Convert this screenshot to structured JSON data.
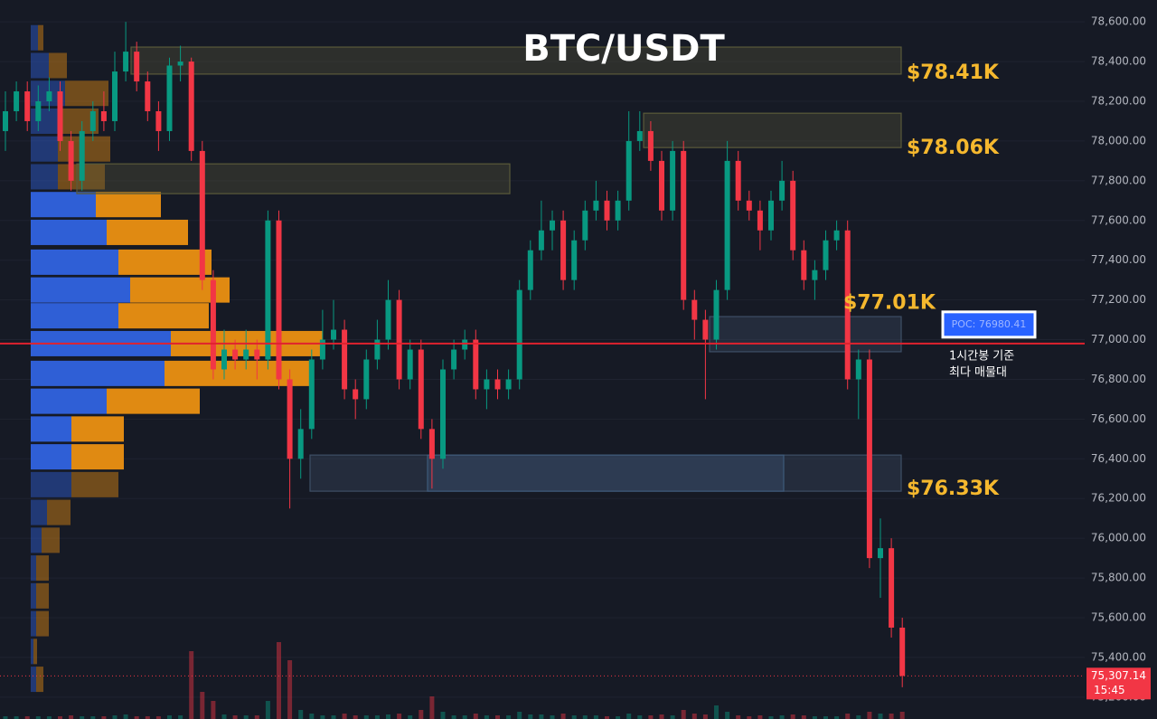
{
  "chart_data": {
    "type": "candlestick",
    "title": "BTC/USDT",
    "ylim": [
      75090,
      78710
    ],
    "yticks": [
      {
        "value": 78600,
        "label": "78,600.00"
      },
      {
        "value": 78400,
        "label": "78,400.00"
      },
      {
        "value": 78200,
        "label": "78,200.00"
      },
      {
        "value": 78000,
        "label": "78,000.00"
      },
      {
        "value": 77800,
        "label": "77,800.00"
      },
      {
        "value": 77600,
        "label": "77,600.00"
      },
      {
        "value": 77400,
        "label": "77,400.00"
      },
      {
        "value": 77200,
        "label": "77,200.00"
      },
      {
        "value": 77000,
        "label": "77,000.00"
      },
      {
        "value": 76800,
        "label": "76,800.00"
      },
      {
        "value": 76600,
        "label": "76,600.00"
      },
      {
        "value": 76400,
        "label": "76,400.00"
      },
      {
        "value": 76200,
        "label": "76,200.00"
      },
      {
        "value": 76000,
        "label": "76,000.00"
      },
      {
        "value": 75800,
        "label": "75,800.00"
      },
      {
        "value": 75600,
        "label": "75,600.00"
      },
      {
        "value": 75400,
        "label": "75,400.00"
      },
      {
        "value": 75200,
        "label": "75,200.00"
      }
    ],
    "grid": true,
    "up_color": "#089981",
    "down_color": "#f23645",
    "candles": [
      [
        78050,
        78250,
        77950,
        78150
      ],
      [
        78150,
        78300,
        78100,
        78250
      ],
      [
        78250,
        78300,
        78050,
        78100
      ],
      [
        78100,
        78280,
        78050,
        78200
      ],
      [
        78200,
        78320,
        78150,
        78250
      ],
      [
        78250,
        78300,
        77950,
        78000
      ],
      [
        78000,
        78050,
        77750,
        77800
      ],
      [
        77800,
        78100,
        77750,
        78050
      ],
      [
        78050,
        78200,
        78000,
        78150
      ],
      [
        78150,
        78250,
        78050,
        78100
      ],
      [
        78100,
        78450,
        78050,
        78350
      ],
      [
        78350,
        78600,
        78300,
        78450
      ],
      [
        78450,
        78500,
        78250,
        78300
      ],
      [
        78300,
        78350,
        78100,
        78150
      ],
      [
        78150,
        78200,
        77950,
        78050
      ],
      [
        78050,
        78420,
        78000,
        78380
      ],
      [
        78380,
        78480,
        78300,
        78400
      ],
      [
        78400,
        78420,
        77900,
        77950
      ],
      [
        77950,
        78000,
        77250,
        77300
      ],
      [
        77300,
        77350,
        76800,
        76850
      ],
      [
        76850,
        77050,
        76800,
        76950
      ],
      [
        76950,
        77000,
        76850,
        76900
      ],
      [
        76900,
        77050,
        76850,
        76950
      ],
      [
        76950,
        77000,
        76800,
        76900
      ],
      [
        76900,
        77650,
        76850,
        77600
      ],
      [
        77600,
        77650,
        76750,
        76800
      ],
      [
        76800,
        76850,
        76150,
        76400
      ],
      [
        76400,
        76650,
        76300,
        76550
      ],
      [
        76550,
        76950,
        76500,
        76900
      ],
      [
        76900,
        77150,
        76850,
        77000
      ],
      [
        77000,
        77200,
        76950,
        77050
      ],
      [
        77050,
        77100,
        76700,
        76750
      ],
      [
        76750,
        76800,
        76600,
        76700
      ],
      [
        76700,
        76950,
        76650,
        76900
      ],
      [
        76900,
        77100,
        76850,
        77000
      ],
      [
        77000,
        77300,
        76950,
        77200
      ],
      [
        77200,
        77250,
        76750,
        76800
      ],
      [
        76800,
        77000,
        76750,
        76950
      ],
      [
        76950,
        77000,
        76500,
        76550
      ],
      [
        76550,
        76600,
        76250,
        76400
      ],
      [
        76400,
        76900,
        76350,
        76850
      ],
      [
        76850,
        77000,
        76800,
        76950
      ],
      [
        76950,
        77050,
        76900,
        77000
      ],
      [
        77000,
        77050,
        76700,
        76750
      ],
      [
        76750,
        76850,
        76650,
        76800
      ],
      [
        76800,
        76850,
        76700,
        76750
      ],
      [
        76750,
        76850,
        76700,
        76800
      ],
      [
        76800,
        77300,
        76750,
        77250
      ],
      [
        77250,
        77500,
        77200,
        77450
      ],
      [
        77450,
        77700,
        77400,
        77550
      ],
      [
        77550,
        77650,
        77450,
        77600
      ],
      [
        77600,
        77650,
        77250,
        77300
      ],
      [
        77300,
        77550,
        77250,
        77500
      ],
      [
        77500,
        77700,
        77450,
        77650
      ],
      [
        77650,
        77800,
        77600,
        77700
      ],
      [
        77700,
        77750,
        77550,
        77600
      ],
      [
        77600,
        77750,
        77550,
        77700
      ],
      [
        77700,
        78150,
        77650,
        78000
      ],
      [
        78000,
        78150,
        77950,
        78050
      ],
      [
        78050,
        78100,
        77850,
        77900
      ],
      [
        77900,
        77950,
        77600,
        77650
      ],
      [
        77650,
        78000,
        77600,
        77950
      ],
      [
        77950,
        78000,
        77150,
        77200
      ],
      [
        77200,
        77250,
        77000,
        77100
      ],
      [
        77100,
        77150,
        76700,
        77000
      ],
      [
        77000,
        77300,
        76950,
        77250
      ],
      [
        77250,
        78000,
        77200,
        77900
      ],
      [
        77900,
        77950,
        77650,
        77700
      ],
      [
        77700,
        77750,
        77600,
        77650
      ],
      [
        77650,
        77700,
        77450,
        77550
      ],
      [
        77550,
        77750,
        77500,
        77700
      ],
      [
        77700,
        77900,
        77650,
        77800
      ],
      [
        77800,
        77850,
        77400,
        77450
      ],
      [
        77450,
        77500,
        77250,
        77300
      ],
      [
        77300,
        77400,
        77200,
        77350
      ],
      [
        77350,
        77550,
        77300,
        77500
      ],
      [
        77500,
        77600,
        77450,
        77550
      ],
      [
        77550,
        77600,
        76750,
        76800
      ],
      [
        76800,
        76950,
        76600,
        76900
      ],
      [
        76900,
        76950,
        75850,
        75900
      ],
      [
        75900,
        76100,
        75700,
        75950
      ],
      [
        75950,
        76000,
        75500,
        75550
      ],
      [
        75550,
        75600,
        75250,
        75307.14
      ]
    ],
    "volume": [
      3,
      3,
      3,
      3,
      3,
      3,
      4,
      3,
      3,
      3,
      4,
      5,
      3,
      3,
      3,
      4,
      4,
      75,
      30,
      20,
      5,
      4,
      4,
      4,
      20,
      85,
      65,
      10,
      6,
      4,
      4,
      6,
      4,
      4,
      4,
      5,
      6,
      4,
      10,
      25,
      8,
      4,
      4,
      6,
      4,
      4,
      4,
      8,
      5,
      5,
      4,
      6,
      4,
      4,
      4,
      3,
      3,
      6,
      4,
      4,
      5,
      4,
      10,
      6,
      5,
      15,
      8,
      4,
      3,
      4,
      3,
      4,
      5,
      4,
      3,
      3,
      3,
      6,
      4,
      8,
      6,
      6,
      8
    ],
    "profile": {
      "price_levels": [
        78520,
        78380,
        78240,
        78100,
        77960,
        77820,
        77680,
        77540,
        77390,
        77250,
        77120,
        76980,
        76830,
        76690,
        76550,
        76410,
        76270,
        76130,
        75990,
        75850,
        75710,
        75570,
        75430,
        75290
      ],
      "buy": [
        8,
        20,
        38,
        35,
        30,
        30,
        72,
        84,
        97,
        110,
        97,
        155,
        148,
        84,
        45,
        45,
        45,
        18,
        12,
        6,
        6,
        6,
        3,
        6
      ],
      "sell": [
        6,
        20,
        48,
        40,
        58,
        52,
        72,
        90,
        103,
        110,
        100,
        168,
        160,
        103,
        58,
        58,
        52,
        26,
        20,
        14,
        14,
        14,
        4,
        8
      ],
      "buy_color": "#2f5fd6",
      "sell_color": "#e08a12"
    },
    "zones": [
      {
        "low": 78337,
        "high": 78473,
        "label": "$78.41K",
        "color": "#5a5a3a"
      },
      {
        "low": 77967,
        "high": 78140,
        "label": "$78.06K",
        "color": "#5a5a3a"
      },
      {
        "low": 77735,
        "high": 77885,
        "color": "#5a5a3a"
      },
      {
        "low": 76939,
        "high": 77116,
        "label": "$77.01K",
        "color": "#3e4f66"
      },
      {
        "low": 76237,
        "high": 76419,
        "label": "$76.33K",
        "color": "#3e4f66"
      },
      {
        "low": 76237,
        "high": 76419,
        "color": "#3e5a7a"
      }
    ],
    "poc": {
      "value": 76980.41,
      "label": "POC: 76980.41",
      "color": "#e0222e"
    },
    "poc_note": [
      "1시간봉 기준",
      "최다 매물대"
    ],
    "last_price": {
      "value": 75307.14,
      "label": "75,307.14",
      "time": "15:45"
    }
  }
}
